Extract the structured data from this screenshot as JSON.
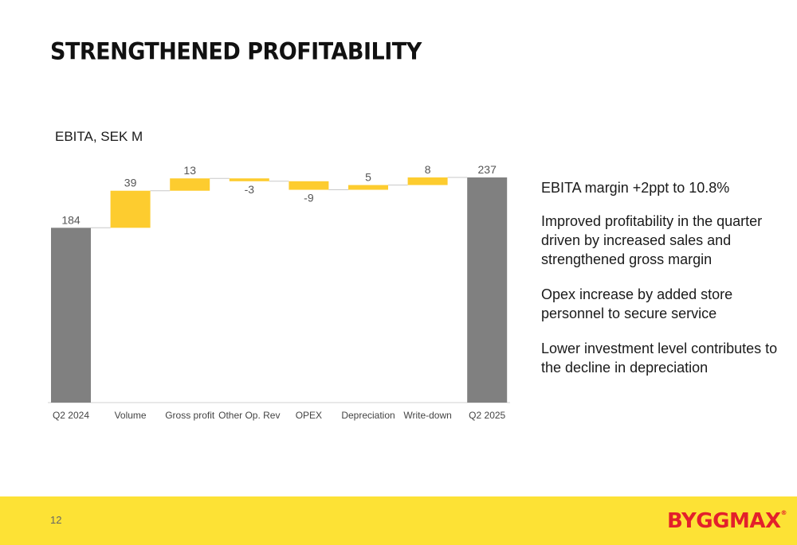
{
  "title": "STRENGTHENED PROFITABILITY",
  "colors": {
    "total_bar": "#808080",
    "delta_bar": "#fdcc2f",
    "footer": "#fde235",
    "brand_red": "#e3202b"
  },
  "chart_data": {
    "type": "waterfall",
    "title": "EBITA, SEK M",
    "categories": [
      "Q2 2024",
      "Volume",
      "Gross profit",
      "Other Op. Rev",
      "OPEX",
      "Depreciation",
      "Write-down",
      "Q2 2025"
    ],
    "values": [
      184,
      39,
      13,
      -3,
      -9,
      5,
      8,
      237
    ],
    "labels": [
      "184",
      "39",
      "13",
      "-3",
      "-9",
      "5",
      "8",
      "237"
    ],
    "kinds": [
      "total",
      "delta",
      "delta",
      "delta",
      "delta",
      "delta",
      "delta",
      "total"
    ],
    "ylim": [
      0,
      237
    ]
  },
  "bullets": [
    "EBITA margin +2ppt to 10.8%",
    "Improved profitability in the quarter driven by increased sales and strengthened gross margin",
    "Opex increase by added store personnel to secure service",
    "Lower investment level contributes to the decline in depreciation"
  ],
  "footer": {
    "page_number": "12",
    "logo_text": "BYGGMAX",
    "logo_mark": "®"
  }
}
